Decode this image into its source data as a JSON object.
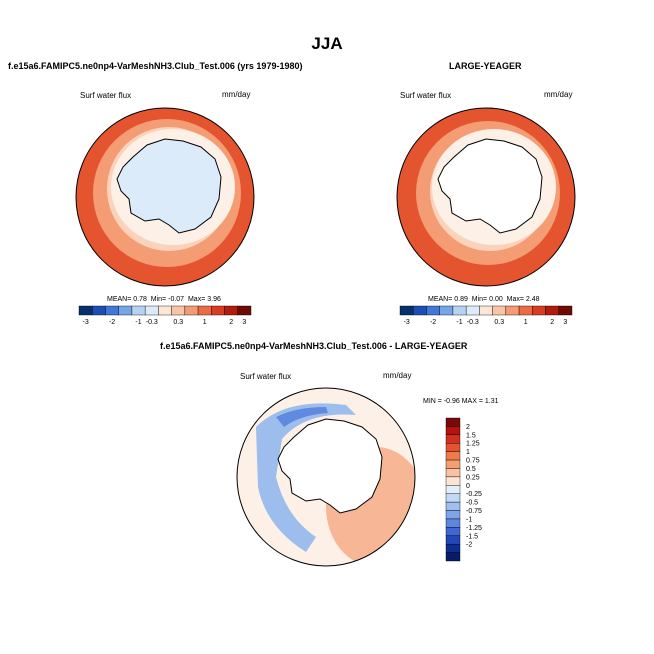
{
  "figure": {
    "season": "JJA",
    "panel_left": {
      "case": "f.e15a6.FAMIPC5.ne0np4-VarMeshNH3.Club_Test.006 (yrs 1979-1980)",
      "variable": "Surf water flux",
      "units": "mm/day",
      "stats": {
        "mean_label": "MEAN=",
        "mean": "0.78",
        "min_label": "Min=",
        "min": "-0.07",
        "max_label": "Max=",
        "max": "3.96"
      }
    },
    "panel_right": {
      "case": "LARGE-YEAGER",
      "variable": "Surf water flux",
      "units": "mm/day",
      "stats": {
        "mean_label": "MEAN=",
        "mean": "0.89",
        "min_label": "Min=",
        "min": "0.00",
        "max_label": "Max=",
        "max": "2.48"
      }
    },
    "panel_diff": {
      "case": "f.e15a6.FAMIPC5.ne0np4-VarMeshNH3.Club_Test.006 - LARGE-YEAGER",
      "variable": "Surf water flux",
      "units": "mm/day",
      "minmax": "MIN =  -0.96  MAX =  1.31"
    },
    "horizontal_colorbar": {
      "colors": [
        "#08306b",
        "#1c4fb3",
        "#3f78d6",
        "#74a6e8",
        "#b5d2f2",
        "#dcebf9",
        "#fde6d7",
        "#f9c4a5",
        "#f39b73",
        "#ec6b45",
        "#da3c1f",
        "#b11c0c",
        "#6f0b05"
      ],
      "ticks": [
        "-3",
        "-2",
        "-1",
        "-0.3",
        "0.3",
        "1",
        "2",
        "3"
      ]
    },
    "vertical_colorbar": {
      "colors": [
        "#7a0a0a",
        "#b31312",
        "#d2301e",
        "#e4532f",
        "#ef7a4b",
        "#f59e72",
        "#f9c2a2",
        "#fce3d3",
        "#e3eefb",
        "#c3d8f4",
        "#a0bfee",
        "#7fa5e8",
        "#5d86df",
        "#3f66d3",
        "#2147b8",
        "#0f2c93",
        "#081b66"
      ],
      "labels": [
        "2",
        "1.5",
        "1.25",
        "1",
        "0.75",
        "0.5",
        "0.25",
        "0",
        "-0.25",
        "-0.5",
        "-0.75",
        "-1",
        "-1.25",
        "-1.5",
        "-2"
      ]
    },
    "map_colors": {
      "ocean_edge": "#e4542f",
      "ocean_mid": "#f49c74",
      "ocean_light": "#fbd3bc",
      "near_zero": "#fdf0e6",
      "ice": "#dcebfa",
      "land": "#ffffff",
      "diff_pos": "#f7b797",
      "diff_neg": "#9dbdec",
      "diff_neg_dark": "#5f8ae0"
    }
  }
}
